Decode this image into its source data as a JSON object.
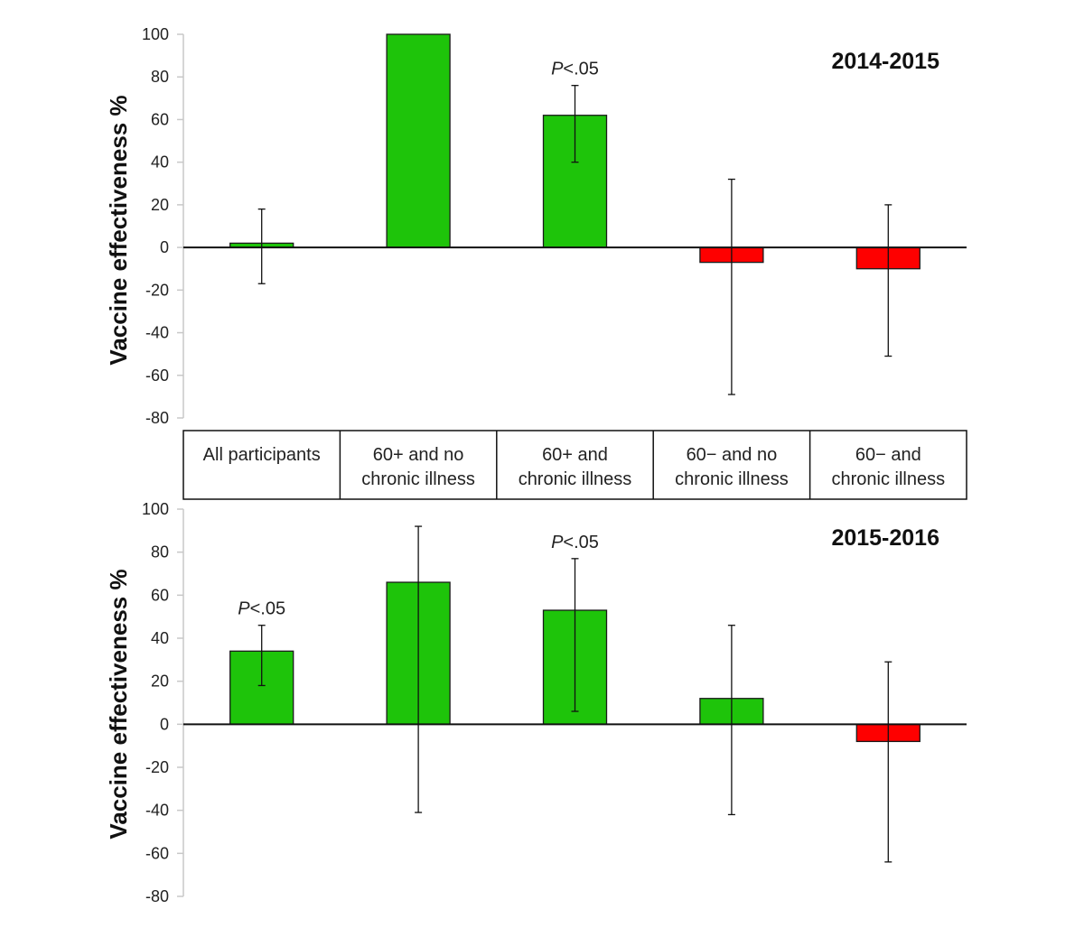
{
  "chart_data": [
    {
      "type": "bar",
      "title": "2014-2015",
      "ylabel": "Vaccine effectiveness %",
      "xlabel": "",
      "ylim": [
        -80,
        100
      ],
      "yticks": [
        "100",
        "80",
        "60",
        "40",
        "20",
        "0",
        "-20",
        "-40",
        "-60",
        "-80"
      ],
      "ytick_values": [
        100,
        80,
        60,
        40,
        20,
        0,
        -20,
        -40,
        -60,
        -80
      ],
      "categories": [
        "All participants",
        "60+ and no chronic illness",
        "60+ and chronic illness",
        "60− and no chronic illness",
        "60− and chronic illness"
      ],
      "values": [
        2,
        100,
        62,
        -7,
        -10
      ],
      "error_low": [
        -17,
        null,
        40,
        -69,
        -51
      ],
      "error_high": [
        18,
        null,
        76,
        32,
        20
      ],
      "annotations": [
        null,
        null,
        "P<.05",
        null,
        null
      ],
      "colors": [
        "#1ec40a",
        "#1ec40a",
        "#1ec40a",
        "#fe0000",
        "#fe0000"
      ],
      "grid": false
    },
    {
      "type": "bar",
      "title": "2015-2016",
      "ylabel": "Vaccine effectiveness %",
      "xlabel": "",
      "ylim": [
        -80,
        100
      ],
      "yticks": [
        "100",
        "80",
        "60",
        "40",
        "20",
        "0",
        "-20",
        "-40",
        "-60",
        "-80"
      ],
      "ytick_values": [
        100,
        80,
        60,
        40,
        20,
        0,
        -20,
        -40,
        -60,
        -80
      ],
      "categories": [
        "All participants",
        "60+ and no chronic illness",
        "60+ and chronic illness",
        "60− and no chronic illness",
        "60− and chronic illness"
      ],
      "values": [
        34,
        66,
        53,
        12,
        -8
      ],
      "error_low": [
        18,
        -41,
        6,
        -42,
        -64
      ],
      "error_high": [
        46,
        92,
        77,
        46,
        29
      ],
      "annotations": [
        "P<.05",
        null,
        "P<.05",
        null,
        null
      ],
      "colors": [
        "#1ec40a",
        "#1ec40a",
        "#1ec40a",
        "#1ec40a",
        "#fe0000"
      ],
      "grid": false
    }
  ],
  "category_table": {
    "cells": [
      [
        "All participants"
      ],
      [
        "60+ and no",
        "chronic illness"
      ],
      [
        "60+ and",
        "chronic illness"
      ],
      [
        "60− and no",
        "chronic illness"
      ],
      [
        "60− and",
        "chronic illness"
      ]
    ]
  },
  "annotation_prefix": "P",
  "annotation_suffix": "<.05"
}
